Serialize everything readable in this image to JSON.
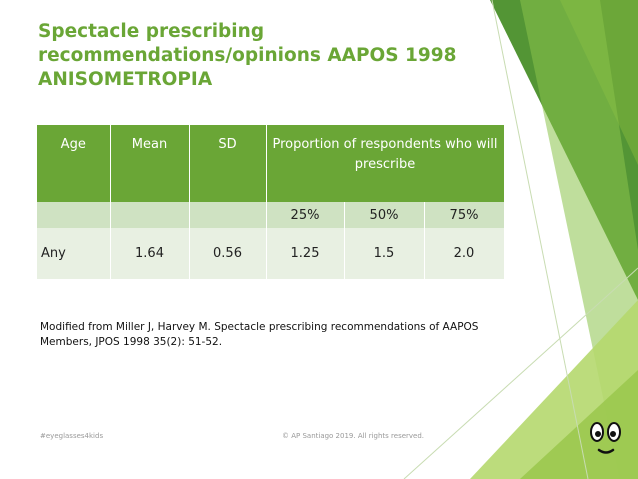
{
  "slide": {
    "title": "Spectacle prescribing recommendations/opinions AAPOS 1998 ANISOMETROPIA",
    "accent_color": "#6aa636",
    "table": {
      "headers": {
        "age": "Age",
        "mean": "Mean",
        "sd": "SD",
        "proportion": "Proportion of respondents who will prescribe"
      },
      "percent_row": [
        "25%",
        "50%",
        "75%"
      ],
      "data_row": [
        "Any",
        "1.64",
        "0.56",
        "1.25",
        "1.5",
        "2.0"
      ]
    },
    "note": "Modified from Miller J, Harvey M.  Spectacle prescribing recommendations of AAPOS Members, JPOS 1998 35(2): 51-52.",
    "footer_left": "#eyeglasses4kids",
    "footer_center": "© AP Santiago 2019. All rights reserved.",
    "mascot_icon": "smiley-face-icon"
  }
}
